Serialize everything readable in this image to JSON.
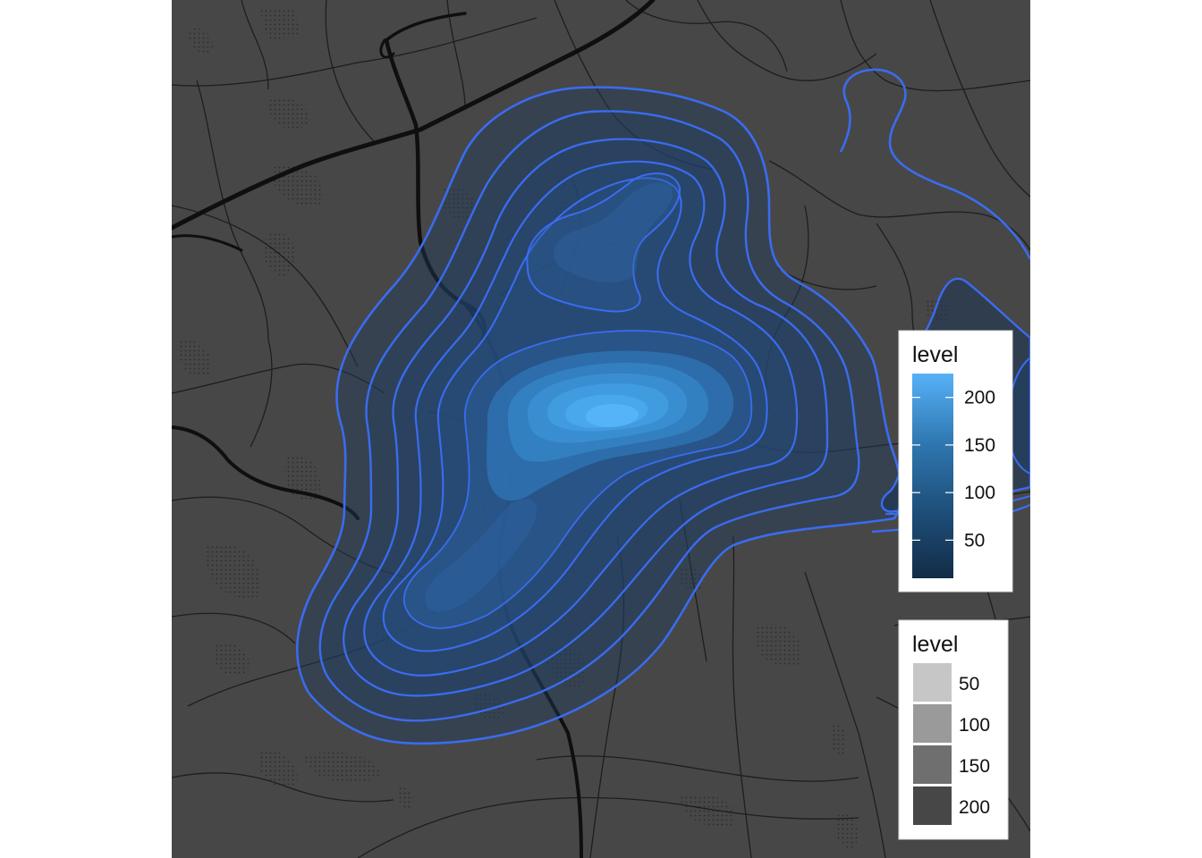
{
  "colors": {
    "map_background": "#474747",
    "road": "#141414",
    "contour_line": "#3a6cf0",
    "density_low": "#142a45",
    "density_high": "#55b4f7"
  },
  "legend_fill": {
    "title": "level",
    "ticks": [
      "200",
      "150",
      "100",
      "50"
    ],
    "tick_values": [
      200,
      150,
      100,
      50
    ],
    "range": [
      10,
      225
    ],
    "gradient": [
      "#132c47",
      "#1e4f7a",
      "#2f77b0",
      "#56b1f7"
    ]
  },
  "legend_alpha": {
    "title": "level",
    "items": [
      {
        "label": "50",
        "color": "#c6c6c6"
      },
      {
        "label": "100",
        "color": "#9a9a9a"
      },
      {
        "label": "150",
        "color": "#6f6f6f"
      },
      {
        "label": "200",
        "color": "#474747"
      }
    ]
  }
}
